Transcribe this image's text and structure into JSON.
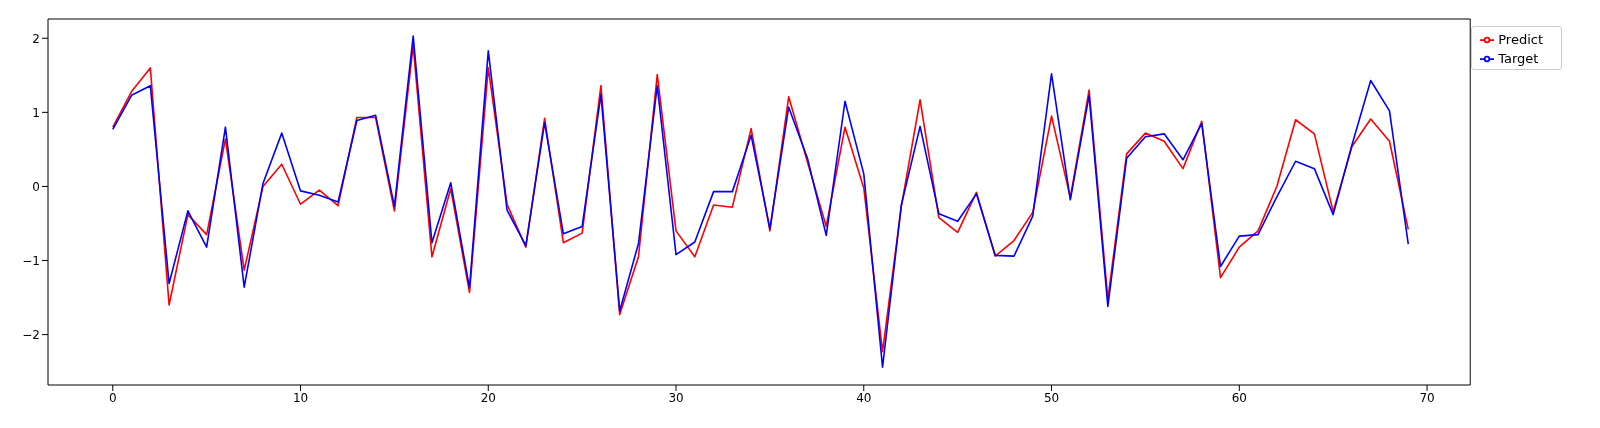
{
  "chart_data": {
    "type": "line",
    "x": [
      0,
      1,
      2,
      3,
      4,
      5,
      6,
      7,
      8,
      9,
      10,
      11,
      12,
      13,
      14,
      15,
      16,
      17,
      18,
      19,
      20,
      21,
      22,
      23,
      24,
      25,
      26,
      27,
      28,
      29,
      30,
      31,
      32,
      33,
      34,
      35,
      36,
      37,
      38,
      39,
      40,
      41,
      42,
      43,
      44,
      45,
      46,
      47,
      48,
      49,
      50,
      51,
      52,
      53,
      54,
      55,
      56,
      57,
      58,
      59,
      60,
      61,
      62,
      63,
      64,
      65,
      66,
      67,
      68,
      69
    ],
    "series": [
      {
        "name": "Predict",
        "color": "#ff0000",
        "values": [
          0.8,
          1.28,
          1.6,
          -1.6,
          -0.38,
          -0.65,
          0.64,
          -1.13,
          0.0,
          0.3,
          -0.24,
          -0.05,
          -0.26,
          0.93,
          0.93,
          -0.33,
          1.9,
          -0.95,
          -0.03,
          -1.43,
          1.6,
          -0.24,
          -0.82,
          0.92,
          -0.76,
          -0.63,
          1.36,
          -1.73,
          -0.95,
          1.51,
          -0.6,
          -0.95,
          -0.25,
          -0.28,
          0.78,
          -0.6,
          1.21,
          0.33,
          -0.54,
          0.8,
          -0.02,
          -2.23,
          -0.27,
          1.17,
          -0.42,
          -0.62,
          -0.08,
          -0.94,
          -0.73,
          -0.35,
          0.95,
          -0.15,
          1.3,
          -1.52,
          0.44,
          0.72,
          0.61,
          0.24,
          0.88,
          -1.23,
          -0.82,
          -0.6,
          0.0,
          0.9,
          0.71,
          -0.34,
          0.54,
          0.91,
          0.61,
          -0.58
        ]
      },
      {
        "name": "Target",
        "color": "#0000ff",
        "values": [
          0.77,
          1.23,
          1.36,
          -1.31,
          -0.33,
          -0.82,
          0.8,
          -1.36,
          0.04,
          0.72,
          -0.06,
          -0.12,
          -0.21,
          0.89,
          0.96,
          -0.27,
          2.03,
          -0.76,
          0.05,
          -1.37,
          1.83,
          -0.32,
          -0.8,
          0.86,
          -0.64,
          -0.54,
          1.24,
          -1.68,
          -0.77,
          1.36,
          -0.92,
          -0.75,
          -0.07,
          -0.07,
          0.69,
          -0.57,
          1.07,
          0.38,
          -0.66,
          1.15,
          0.17,
          -2.44,
          -0.25,
          0.81,
          -0.37,
          -0.47,
          -0.1,
          -0.93,
          -0.94,
          -0.4,
          1.52,
          -0.18,
          1.23,
          -1.62,
          0.38,
          0.67,
          0.71,
          0.36,
          0.85,
          -1.08,
          -0.67,
          -0.65,
          -0.14,
          0.34,
          0.24,
          -0.38,
          0.56,
          1.43,
          1.02,
          -0.78
        ]
      }
    ],
    "xlim": [
      -3.45,
      72.3
    ],
    "ylim": [
      -2.68,
      2.26
    ],
    "xticks": [
      0,
      10,
      20,
      30,
      40,
      50,
      60,
      70
    ],
    "yticks": [
      -2,
      -1,
      0,
      1,
      2
    ],
    "grid": false,
    "legend": "top right",
    "marker": "none",
    "line_style": "solid"
  }
}
